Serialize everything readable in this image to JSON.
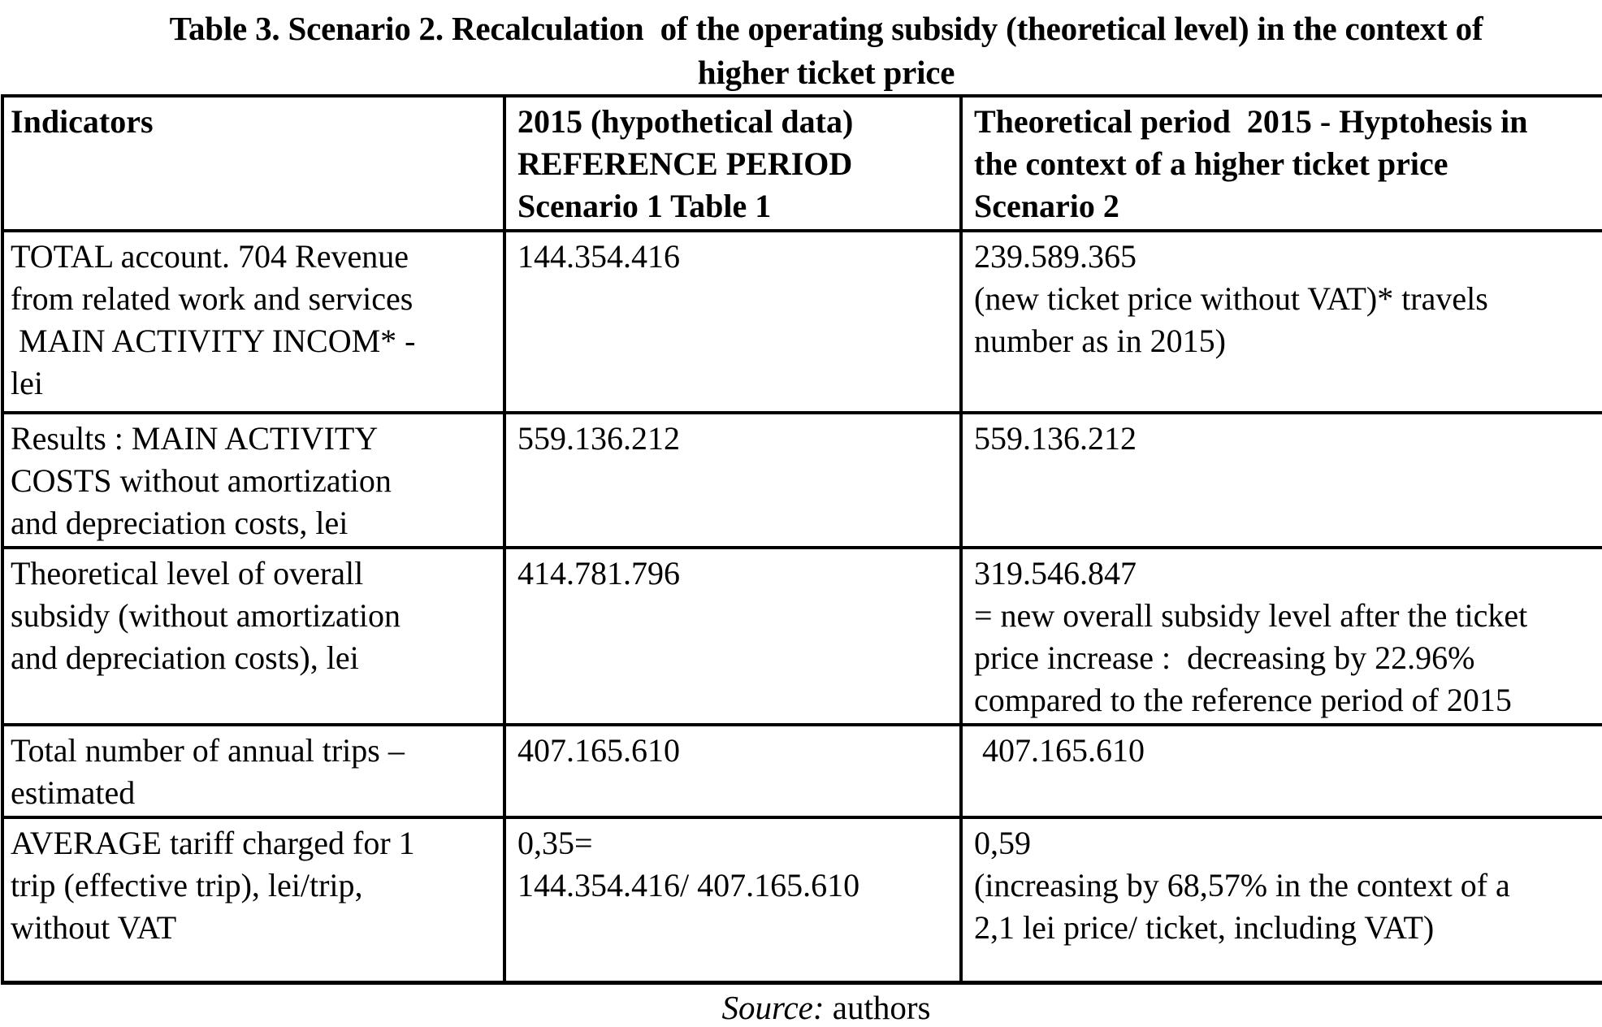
{
  "title": {
    "text": "Table 3. Scenario 2. Recalculation  of the operating subsidy (theoretical level) in the context of\nhigher ticket price"
  },
  "table": {
    "columns": [
      {
        "label": "Indicators"
      },
      {
        "label": "2015 (hypothetical data)\nREFERENCE PERIOD\nScenario 1 Table 1"
      },
      {
        "label": "Theoretical period  2015 - Hyptohesis in\nthe context of a higher ticket price\nScenario 2"
      }
    ],
    "rows": [
      {
        "indicator": "TOTAL account. 704 Revenue\nfrom related work and services\n MAIN ACTIVITY INCOM* -\nlei",
        "reference": "144.354.416",
        "theoretical": "239.589.365\n(new ticket price without VAT)* travels\nnumber as in 2015)"
      },
      {
        "indicator": "Results : MAIN ACTIVITY\nCOSTS without amortization\nand depreciation costs, lei",
        "reference": "559.136.212",
        "theoretical": "559.136.212"
      },
      {
        "indicator": "Theoretical level of overall\nsubsidy (without amortization\nand depreciation costs), lei",
        "reference": "414.781.796",
        "theoretical": "319.546.847\n= new overall subsidy level after the ticket\nprice increase :  decreasing by 22.96%\ncompared to the reference period of 2015"
      },
      {
        "indicator": "Total number of annual trips –\nestimated",
        "reference": "407.165.610",
        "theoretical": " 407.165.610"
      },
      {
        "indicator": "AVERAGE tariff charged for 1\ntrip (effective trip), lei/trip,\nwithout VAT",
        "reference": "0,35=\n144.354.416/ 407.165.610",
        "theoretical": "0,59\n(increasing by 68,57% in the context of a\n2,1 lei price/ ticket, including VAT)"
      }
    ]
  },
  "source": {
    "label": "Source:",
    "authors": " authors"
  }
}
